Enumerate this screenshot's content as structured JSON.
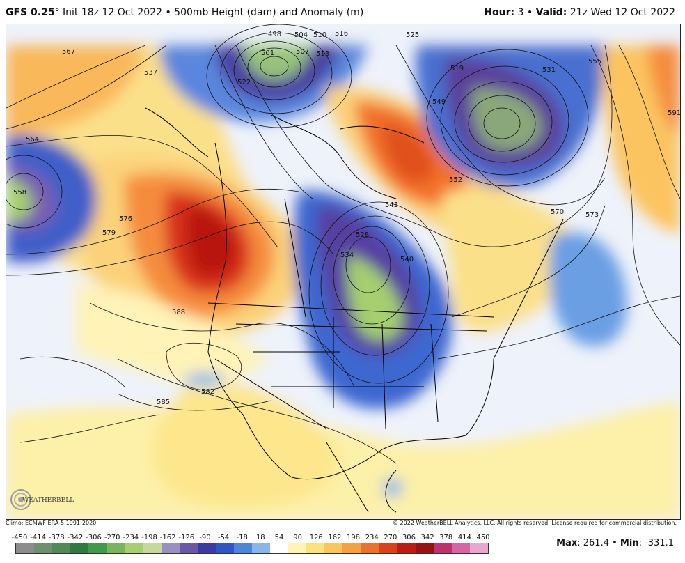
{
  "header": {
    "model": "GFS 0.25",
    "degree": "°",
    "init": " Init 18z 12 Oct 2022 • 500mb Height (dam) and Anomaly (m)",
    "hour_label": "Hour:",
    "hour_value": " 3 • ",
    "valid_label": "Valid:",
    "valid_value": " 21z Wed 12 Oct 2022"
  },
  "footer": {
    "climo": "Climo: ECMWF ERA-5 1991-2020",
    "copyright": "© 2022 WeatherBELL Analytics, LLC. All rights reserved. License required for commercial distribution.",
    "max_label": "Max",
    "max_value": ": 261.4 • ",
    "min_label": "Min",
    "min_value": ": -331.1",
    "logo_text": "WEATHERBELL"
  },
  "colorbar": {
    "ticks": [
      "-450",
      "-414",
      "-378",
      "-342",
      "-306",
      "-270",
      "-234",
      "-198",
      "-162",
      "-126",
      "-90",
      "-54",
      "-18",
      "18",
      "54",
      "90",
      "126",
      "162",
      "198",
      "234",
      "270",
      "306",
      "342",
      "378",
      "414",
      "450"
    ],
    "colors": [
      "#8c8c8c",
      "#6f8f6f",
      "#4f8a58",
      "#2f7a3e",
      "#3f9a4a",
      "#79b65a",
      "#a6cf6e",
      "#c4d99a",
      "#9a8fc3",
      "#6b57a8",
      "#3b3aa8",
      "#2f55c8",
      "#4a86dd",
      "#86b6ec",
      "#ffffff",
      "#fff4b0",
      "#fde27a",
      "#fcc65a",
      "#f9a03e",
      "#f0702a",
      "#e04018",
      "#c01a12",
      "#9c1010",
      "#c0306a",
      "#d864a6",
      "#e8a6d0"
    ]
  },
  "map": {
    "contours": [
      {
        "label": "498"
      },
      {
        "label": "501"
      },
      {
        "label": "504"
      },
      {
        "label": "507"
      },
      {
        "label": "510"
      },
      {
        "label": "513"
      },
      {
        "label": "516"
      },
      {
        "label": "519"
      },
      {
        "label": "522"
      },
      {
        "label": "525"
      },
      {
        "label": "528"
      },
      {
        "label": "531"
      },
      {
        "label": "534"
      },
      {
        "label": "537"
      },
      {
        "label": "540"
      },
      {
        "label": "543"
      },
      {
        "label": "549"
      },
      {
        "label": "552"
      },
      {
        "label": "555"
      },
      {
        "label": "558"
      },
      {
        "label": "564"
      },
      {
        "label": "567"
      },
      {
        "label": "570"
      },
      {
        "label": "573"
      },
      {
        "label": "576"
      },
      {
        "label": "579"
      },
      {
        "label": "582"
      },
      {
        "label": "585"
      },
      {
        "label": "588"
      },
      {
        "label": "591"
      }
    ]
  }
}
